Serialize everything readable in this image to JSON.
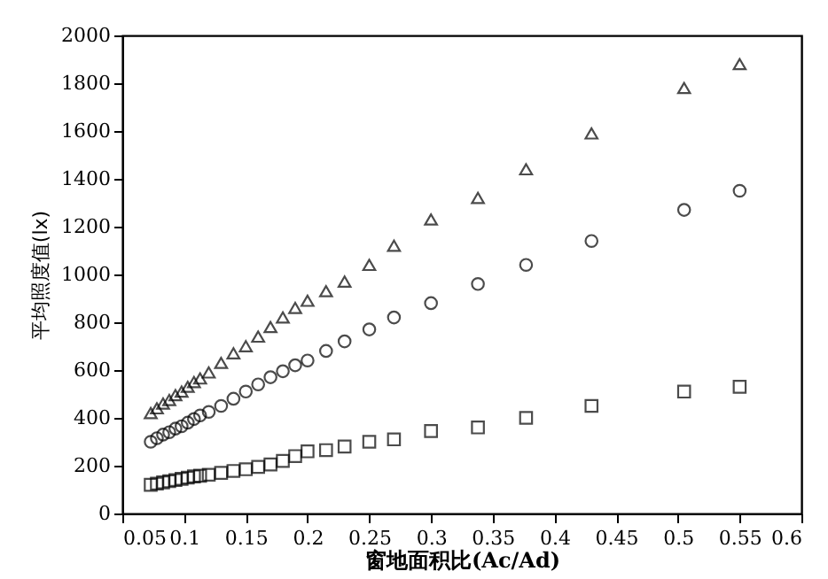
{
  "chart_data": {
    "type": "scatter",
    "xlabel": "窗地面积比(Ac/Ad)",
    "ylabel": "平均照度值(lx)",
    "x": [
      0.073,
      0.078,
      0.083,
      0.088,
      0.093,
      0.098,
      0.103,
      0.108,
      0.113,
      0.12,
      0.13,
      0.14,
      0.15,
      0.16,
      0.17,
      0.18,
      0.19,
      0.2,
      0.215,
      0.23,
      0.25,
      0.27,
      0.3,
      0.338,
      0.377,
      0.43,
      0.505,
      0.55
    ],
    "series": [
      {
        "color": "#000000",
        "marker": "triangle",
        "values": [
          420,
          440,
          460,
          475,
          495,
          510,
          530,
          550,
          565,
          590,
          630,
          670,
          700,
          740,
          780,
          820,
          860,
          890,
          930,
          970,
          1040,
          1120,
          1230,
          1320,
          1440,
          1590,
          1780,
          1880
        ]
      },
      {
        "color": "#000000",
        "marker": "circle",
        "values": [
          300,
          315,
          330,
          340,
          355,
          365,
          380,
          395,
          410,
          425,
          450,
          480,
          510,
          540,
          570,
          595,
          620,
          640,
          680,
          720,
          770,
          820,
          880,
          960,
          1040,
          1140,
          1270,
          1350
        ]
      },
      {
        "color": "#000000",
        "marker": "square",
        "values": [
          120,
          125,
          130,
          135,
          140,
          145,
          150,
          155,
          158,
          162,
          170,
          178,
          185,
          195,
          205,
          220,
          240,
          260,
          265,
          280,
          300,
          310,
          345,
          360,
          400,
          450,
          510,
          530
        ]
      }
    ],
    "xlim": [
      0.05,
      0.6
    ],
    "xticks": [
      0.05,
      0.1,
      0.15,
      0.2,
      0.25,
      0.3,
      0.35,
      0.4,
      0.45,
      0.5,
      0.55,
      0.6
    ],
    "ylim": [
      0,
      2000
    ],
    "yticks": [
      0,
      200,
      400,
      600,
      800,
      1000,
      1200,
      1400,
      1600,
      1800,
      2000
    ],
    "grid": false
  }
}
